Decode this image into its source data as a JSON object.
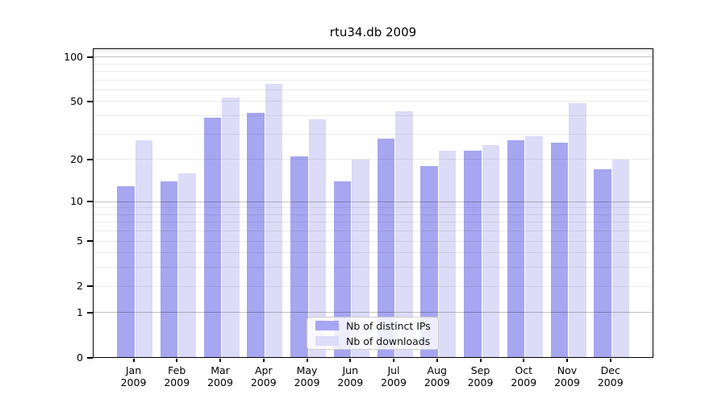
{
  "title": "rtu34.db 2009",
  "chart_data": {
    "type": "bar",
    "title": "rtu34.db 2009",
    "months": [
      "Jan",
      "Feb",
      "Mar",
      "Apr",
      "May",
      "Jun",
      "Jul",
      "Aug",
      "Sep",
      "Oct",
      "Nov",
      "Dec"
    ],
    "year": "2009",
    "series": [
      {
        "name": "Nb of distinct IPs",
        "color": "#a6a6f1",
        "values": [
          13,
          14,
          39,
          42,
          21,
          14,
          28,
          18,
          23,
          27,
          26,
          17
        ]
      },
      {
        "name": "Nb of downloads",
        "color": "#dcdcf8",
        "values": [
          27,
          16,
          53,
          66,
          38,
          20,
          43,
          23,
          25,
          29,
          49,
          20
        ]
      }
    ],
    "yscale": "log1p",
    "yticks": [
      100,
      50,
      20,
      10,
      5,
      2,
      1,
      0
    ],
    "ylim": [
      0,
      114
    ],
    "grid": "on",
    "grid_above_bars": true,
    "legend_position": "lower center"
  }
}
